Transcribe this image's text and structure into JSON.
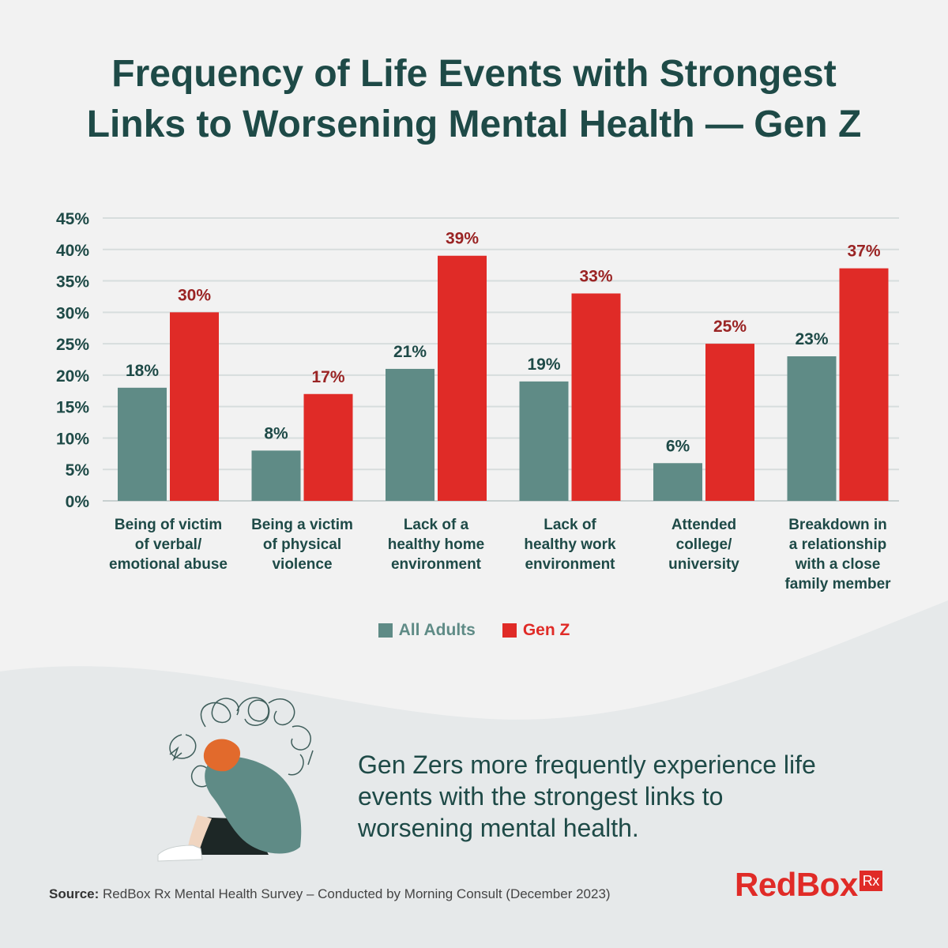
{
  "title": {
    "line1": "Frequency of Life Events with Strongest",
    "line2": "Links to Worsening Mental Health — Gen Z"
  },
  "colors": {
    "all_adults": "#5f8b86",
    "gen_z": "#e02b27",
    "title": "#1e4a47",
    "value_red": "#9a2424"
  },
  "chart_data": {
    "type": "bar",
    "categories": [
      [
        "Being of victim",
        "of verbal/",
        "emotional abuse"
      ],
      [
        "Being a victim",
        "of physical",
        "violence"
      ],
      [
        "Lack of a",
        "healthy home",
        "environment"
      ],
      [
        "Lack of",
        "healthy work",
        "environment"
      ],
      [
        "Attended",
        "college/",
        "university"
      ],
      [
        "Breakdown in",
        "a relationship",
        "with a close",
        "family member"
      ]
    ],
    "series": [
      {
        "name": "All Adults",
        "values": [
          18,
          8,
          21,
          19,
          6,
          23
        ],
        "labels": [
          "18%",
          "8%",
          "21%",
          "19%",
          "6%",
          "23%"
        ]
      },
      {
        "name": "Gen Z",
        "values": [
          30,
          17,
          39,
          33,
          25,
          37
        ],
        "labels": [
          "30%",
          "17%",
          "39%",
          "33%",
          "25%",
          "37%"
        ]
      }
    ],
    "ylim": [
      0,
      45
    ],
    "yticks": [
      "0%",
      "5%",
      "10%",
      "15%",
      "20%",
      "25%",
      "30%",
      "35%",
      "40%",
      "45%"
    ],
    "grid": true,
    "legend": "bottom-center"
  },
  "message": "Gen Zers more frequently experience life events with the strongest links to worsening mental health.",
  "source": {
    "label": "Source:",
    "text": "RedBox Rx Mental Health Survey – Conducted by Morning Consult (December 2023)"
  },
  "logo": {
    "text": "RedBox",
    "box": "Rx"
  }
}
